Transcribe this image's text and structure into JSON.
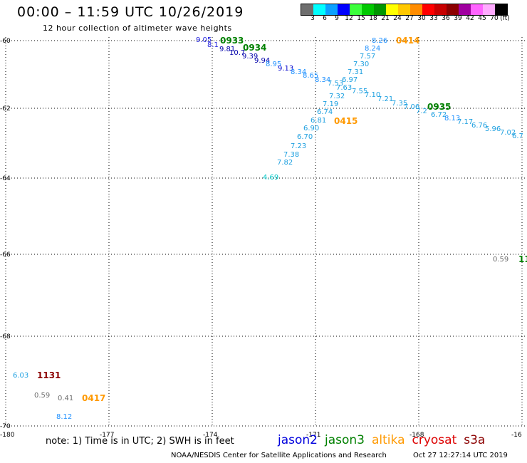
{
  "header": {
    "title": "00:00 – 11:59 UTC 10/26/2019",
    "subtitle": "12 hour collection of altimeter wave heights"
  },
  "colorbar": {
    "colors": [
      "#6e6e6e",
      "#00ffff",
      "#0aa0ff",
      "#0000ff",
      "#3cff3c",
      "#00c800",
      "#009600",
      "#ffff00",
      "#ffc800",
      "#ff8c00",
      "#ff0000",
      "#c80000",
      "#8c0000",
      "#a000a0",
      "#ff64ff",
      "#ffaaff",
      "#000000"
    ],
    "labels": [
      "3",
      "6",
      "9",
      "12",
      "15",
      "18",
      "21",
      "24",
      "27",
      "30",
      "33",
      "36",
      "39",
      "42",
      "45",
      "70",
      "(ft)"
    ]
  },
  "axes": {
    "x_labels": [
      "-180",
      "-177",
      "-174",
      "-171",
      "-168",
      "-16"
    ],
    "y_labels": [
      "-60",
      "-62",
      "-64",
      "-66",
      "-68",
      "-70"
    ]
  },
  "observations": [
    {
      "text": "9.05",
      "color": "#2222dd"
    },
    {
      "text": "8.1",
      "color": "#2222dd"
    },
    {
      "text": "9.81",
      "color": "#0000aa"
    },
    {
      "text": "10.7",
      "color": "#0000aa"
    },
    {
      "text": "9.39",
      "color": "#0000aa"
    },
    {
      "text": "9.94",
      "color": "#0000aa"
    },
    {
      "text": "8.95",
      "color": "#1e90ff"
    },
    {
      "text": "9.13",
      "color": "#0000cc"
    },
    {
      "text": "8.34",
      "color": "#1e90ff"
    },
    {
      "text": "8.65",
      "color": "#1e90ff"
    },
    {
      "text": "8.34",
      "color": "#1e90ff"
    },
    {
      "text": "7.53",
      "color": "#1ea0e0"
    },
    {
      "text": "7.63",
      "color": "#1ea0e0"
    },
    {
      "text": "7.55",
      "color": "#1ea0e0"
    },
    {
      "text": "7.10",
      "color": "#1ea0e0"
    },
    {
      "text": "7.21",
      "color": "#1ea0e0"
    },
    {
      "text": "7.35",
      "color": "#1ea0e0"
    },
    {
      "text": "7.06",
      "color": "#1ea0e0"
    },
    {
      "text": "7.2",
      "color": "#1ea0e0"
    },
    {
      "text": "6.72",
      "color": "#1ea0e0"
    },
    {
      "text": "8.13",
      "color": "#1e90ff"
    },
    {
      "text": "7.17",
      "color": "#1ea0e0"
    },
    {
      "text": "6.76",
      "color": "#1ea0e0"
    },
    {
      "text": "5.96",
      "color": "#1ea0e0"
    },
    {
      "text": "7.02",
      "color": "#1ea0e0"
    },
    {
      "text": "6.7",
      "color": "#1ea0e0"
    },
    {
      "text": "8.26",
      "color": "#1e90ff"
    },
    {
      "text": "8.24",
      "color": "#1e90ff"
    },
    {
      "text": "7.57",
      "color": "#1ea0e0"
    },
    {
      "text": "7.30",
      "color": "#1ea0e0"
    },
    {
      "text": "7.31",
      "color": "#1ea0e0"
    },
    {
      "text": "6.97",
      "color": "#1ea0e0"
    },
    {
      "text": "7.32",
      "color": "#1ea0e0"
    },
    {
      "text": "7.19",
      "color": "#1ea0e0"
    },
    {
      "text": "6.74",
      "color": "#1ea0e0"
    },
    {
      "text": "6.81",
      "color": "#1ea0e0"
    },
    {
      "text": "6.90",
      "color": "#1ea0e0"
    },
    {
      "text": "6.70",
      "color": "#1ea0e0"
    },
    {
      "text": "7.23",
      "color": "#1ea0e0"
    },
    {
      "text": "7.38",
      "color": "#1ea0e0"
    },
    {
      "text": "7.82",
      "color": "#1ea0e0"
    },
    {
      "text": "4.69",
      "color": "#00c8c8"
    },
    {
      "text": "0.59",
      "color": "#6e6e6e"
    },
    {
      "text": "6.03",
      "color": "#1ea0e0"
    },
    {
      "text": "0.59",
      "color": "#6e6e6e"
    },
    {
      "text": "0.41",
      "color": "#6e6e6e"
    },
    {
      "text": "8.12",
      "color": "#1e90ff"
    }
  ],
  "time_labels": [
    {
      "text": "0933",
      "color": "#008000"
    },
    {
      "text": "0934",
      "color": "#008000"
    },
    {
      "text": "0414",
      "color": "#ff9900"
    },
    {
      "text": "0415",
      "color": "#ff9900"
    },
    {
      "text": "0935",
      "color": "#008000"
    },
    {
      "text": "11",
      "color": "#008000"
    },
    {
      "text": "1131",
      "color": "#8b0000"
    },
    {
      "text": "0417",
      "color": "#ff9900"
    }
  ],
  "note": "note: 1) Time is in UTC; 2) SWH is in feet",
  "legend": [
    {
      "text": "jason2",
      "color": "#0000dd"
    },
    {
      "text": "jason3",
      "color": "#008000"
    },
    {
      "text": "altika",
      "color": "#ff9900"
    },
    {
      "text": "cryosat",
      "color": "#dd0000"
    },
    {
      "text": "s3a",
      "color": "#8b0000"
    }
  ],
  "footer": {
    "credit": "NOAA/NESDIS Center for Satellite Applications and Research",
    "timestamp": "Oct 27 12:27:14 UTC 2019"
  }
}
